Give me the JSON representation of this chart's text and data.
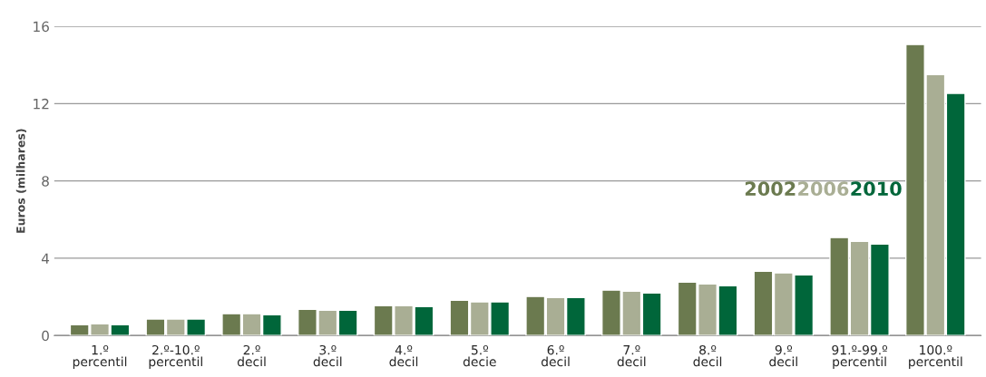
{
  "chart_data": {
    "type": "bar",
    "ylabel": "Euros (milhares)",
    "categories": [
      "1.º\npercentil",
      "2.º-10.º\npercentil",
      "2.º\ndecil",
      "3.º\ndecil",
      "4.º\ndecil",
      "5.º\ndecie",
      "6.º\ndecil",
      "7.º\ndecil",
      "8.º\ndecil",
      "9.º\ndecil",
      "91.º-99.º\npercentil",
      "100.º\npercentil"
    ],
    "series": [
      {
        "name": "2002",
        "color": "#6b7a4f",
        "values": [
          0.56,
          0.85,
          1.13,
          1.36,
          1.55,
          1.83,
          2.02,
          2.35,
          2.77,
          3.33,
          5.07,
          15.06
        ]
      },
      {
        "name": "2006",
        "color": "#a9ae94",
        "values": [
          0.61,
          0.85,
          1.13,
          1.31,
          1.55,
          1.74,
          1.97,
          2.3,
          2.67,
          3.24,
          4.88,
          13.5
        ]
      },
      {
        "name": "2010",
        "color": "#00663a",
        "values": [
          0.56,
          0.85,
          1.08,
          1.31,
          1.5,
          1.74,
          1.97,
          2.2,
          2.58,
          3.14,
          4.74,
          12.53
        ]
      }
    ],
    "ylim": [
      0,
      16
    ],
    "yticks": [
      0,
      4,
      8,
      12,
      16
    ],
    "grid": "y",
    "legend": "right"
  }
}
